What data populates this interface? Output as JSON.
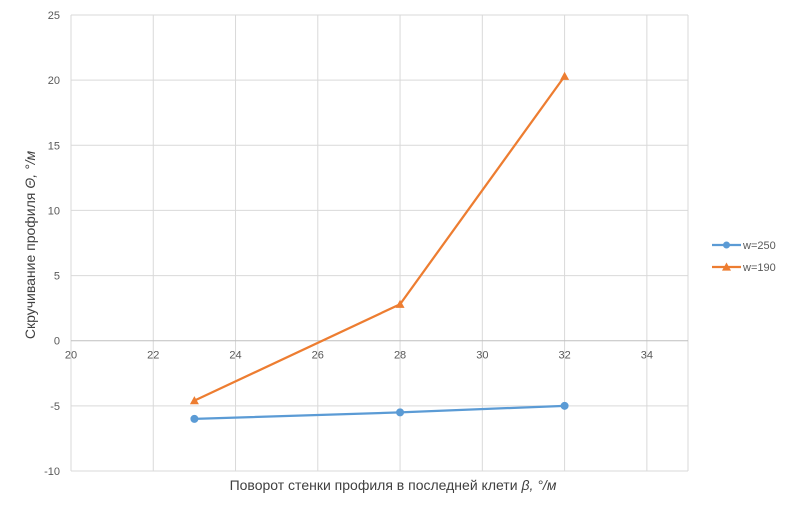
{
  "chart_data": {
    "type": "line",
    "title": "",
    "xlabel": "Поворот стенки профиля в последней клети",
    "xlabel_symbol": "β, °/м",
    "ylabel": "Скручивание профиля",
    "ylabel_symbol": "Θ, °/м",
    "xlim": [
      20,
      35
    ],
    "ylim": [
      -10,
      25
    ],
    "x_ticks": [
      "20",
      "22",
      "24",
      "26",
      "28",
      "30",
      "32",
      "34"
    ],
    "y_ticks": [
      "25",
      "20",
      "15",
      "10",
      "5",
      "0",
      "-5",
      "-10"
    ],
    "grid": true,
    "legend_position": "right",
    "series": [
      {
        "name": "w=250",
        "color": "#5b9bd5",
        "marker": "circle",
        "x": [
          23,
          28,
          32
        ],
        "y": [
          -6.0,
          -5.5,
          -5.0
        ]
      },
      {
        "name": "w=190",
        "color": "#ed7d31",
        "marker": "triangle",
        "x": [
          23,
          28,
          32
        ],
        "y": [
          -4.6,
          2.8,
          20.3
        ]
      }
    ]
  }
}
